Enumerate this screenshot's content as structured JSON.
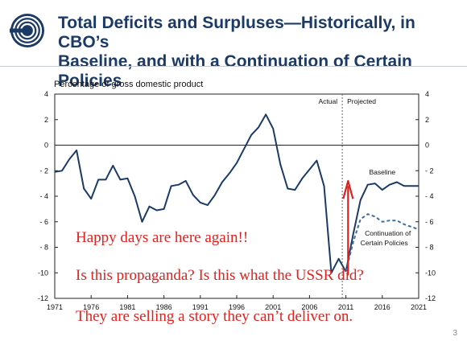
{
  "slide": {
    "title_line1": "Total Deficits and Surpluses—Historically, in CBO’s",
    "title_line2": "Baseline, and with a Continuation of Certain Policies",
    "page_number": "3",
    "brand_color": "#1b3a66"
  },
  "annotations": [
    "Happy days are here again!!",
    "Is this propaganda? Is this what the USSR did?",
    "They are selling a story they can’t deliver on."
  ],
  "chart_data": {
    "type": "line",
    "ylabel": "Percentage of gross domestic product",
    "xlim": [
      1971,
      2021
    ],
    "ylim": [
      -12,
      4
    ],
    "x_ticks": [
      1971,
      1976,
      1981,
      1986,
      1991,
      1996,
      2001,
      2006,
      2011,
      2016,
      2021
    ],
    "y_ticks": [
      4,
      2,
      0,
      -2,
      -4,
      -6,
      -8,
      -10,
      -12
    ],
    "y_tick_labels": [
      "4",
      "2",
      "0",
      "- 2",
      "- 4",
      "- 6",
      "- 8",
      "-10",
      "-12"
    ],
    "divider_x": 2010.5,
    "divider_labels": {
      "left": "Actual",
      "right": "Projected"
    },
    "series": [
      {
        "name": "",
        "style": "solid",
        "color": "#1b3a66",
        "x": [
          1971,
          1972,
          1973,
          1974,
          1975,
          1976,
          1977,
          1978,
          1979,
          1980,
          1981,
          1982,
          1983,
          1984,
          1985,
          1986,
          1987,
          1988,
          1989,
          1990,
          1991,
          1992,
          1993,
          1994,
          1995,
          1996,
          1997,
          1998,
          1999,
          2000,
          2001,
          2002,
          2003,
          2004,
          2005,
          2006,
          2007,
          2008,
          2009,
          2010,
          2011
        ],
        "y": [
          -2.1,
          -2.0,
          -1.1,
          -0.4,
          -3.4,
          -4.2,
          -2.7,
          -2.7,
          -1.6,
          -2.7,
          -2.6,
          -4.0,
          -6.0,
          -4.8,
          -5.1,
          -5.0,
          -3.2,
          -3.1,
          -2.8,
          -3.9,
          -4.5,
          -4.7,
          -3.9,
          -2.9,
          -2.2,
          -1.4,
          -0.3,
          0.8,
          1.4,
          2.4,
          1.3,
          -1.5,
          -3.4,
          -3.5,
          -2.6,
          -1.9,
          -1.2,
          -3.2,
          -10.0,
          -8.9,
          -9.9
        ]
      },
      {
        "name": "Baseline",
        "style": "solid",
        "color": "#1b3a66",
        "x": [
          2011,
          2012,
          2013,
          2014,
          2015,
          2016,
          2017,
          2018,
          2019,
          2020,
          2021
        ],
        "y": [
          -9.9,
          -7.0,
          -4.3,
          -3.1,
          -3.0,
          -3.5,
          -3.1,
          -2.9,
          -3.2,
          -3.2,
          -3.2
        ]
      },
      {
        "name": "Continuation of Certain Policies",
        "style": "dashed",
        "color": "#3f6b9e",
        "x": [
          2011,
          2012,
          2013,
          2014,
          2015,
          2016,
          2017,
          2018,
          2019,
          2020,
          2021
        ],
        "y": [
          -9.9,
          -7.6,
          -5.8,
          -5.4,
          -5.6,
          -6.0,
          -5.9,
          -5.9,
          -6.2,
          -6.4,
          -6.6
        ]
      }
    ],
    "arrow_color": "#e0221f"
  }
}
